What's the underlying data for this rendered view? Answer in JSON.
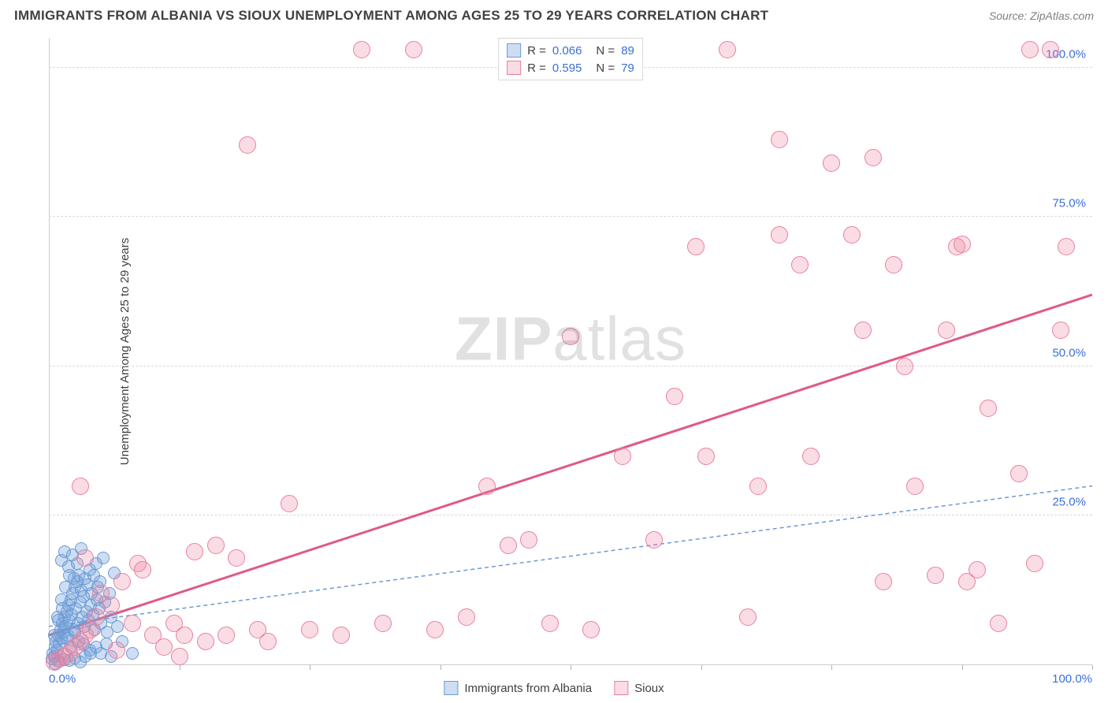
{
  "header": {
    "title": "IMMIGRANTS FROM ALBANIA VS SIOUX UNEMPLOYMENT AMONG AGES 25 TO 29 YEARS CORRELATION CHART",
    "source": "Source: ZipAtlas.com"
  },
  "watermark": {
    "z": "ZIP",
    "rest": "atlas"
  },
  "chart": {
    "type": "scatter",
    "y_axis_title": "Unemployment Among Ages 25 to 29 years",
    "background_color": "#ffffff",
    "grid_color": "#d8d8d8",
    "axis_color": "#cccccc",
    "tick_label_color": "#3a6fd8",
    "tick_fontsize": 15,
    "axis_title_fontsize": 15,
    "xlim": [
      0,
      100
    ],
    "ylim": [
      0,
      105
    ],
    "x_ticks": [
      0,
      12.5,
      25,
      37.5,
      50,
      62.5,
      75,
      87.5,
      100
    ],
    "x_tick_labels": {
      "0": "0.0%",
      "100": "100.0%"
    },
    "y_ticks": [
      25,
      50,
      75,
      100
    ],
    "y_tick_labels": {
      "25": "25.0%",
      "50": "50.0%",
      "75": "75.0%",
      "100": "100.0%"
    },
    "series": [
      {
        "name": "Immigrants from Albania",
        "label": "Immigrants from Albania",
        "color_fill": "rgba(116,161,219,0.35)",
        "color_stroke": "#6a9ad6",
        "marker_radius": 8,
        "R": "0.066",
        "N": "89",
        "trend": {
          "x1": 0,
          "y1": 6.5,
          "x2": 100,
          "y2": 30,
          "stroke": "#6a9ad6",
          "width": 1.5,
          "dash": "5,4"
        },
        "points": [
          [
            0.3,
            1.0
          ],
          [
            0.4,
            2.0
          ],
          [
            0.5,
            1.5
          ],
          [
            0.6,
            3.0
          ],
          [
            0.7,
            4.0
          ],
          [
            0.8,
            2.5
          ],
          [
            0.9,
            5.0
          ],
          [
            1.0,
            3.5
          ],
          [
            1.1,
            6.0
          ],
          [
            1.2,
            4.5
          ],
          [
            1.3,
            7.0
          ],
          [
            1.4,
            5.5
          ],
          [
            1.5,
            8.0
          ],
          [
            1.6,
            6.5
          ],
          [
            1.7,
            9.0
          ],
          [
            1.8,
            5.0
          ],
          [
            1.9,
            10.0
          ],
          [
            2.0,
            7.5
          ],
          [
            2.1,
            11.0
          ],
          [
            2.2,
            8.5
          ],
          [
            2.3,
            12.0
          ],
          [
            2.4,
            6.0
          ],
          [
            2.5,
            13.0
          ],
          [
            2.6,
            9.5
          ],
          [
            2.7,
            14.0
          ],
          [
            2.8,
            7.0
          ],
          [
            2.9,
            15.0
          ],
          [
            3.0,
            10.5
          ],
          [
            3.1,
            12.5
          ],
          [
            3.2,
            8.0
          ],
          [
            3.3,
            11.5
          ],
          [
            3.4,
            6.5
          ],
          [
            3.5,
            14.5
          ],
          [
            3.6,
            9.0
          ],
          [
            3.7,
            13.5
          ],
          [
            3.8,
            7.5
          ],
          [
            3.9,
            16.0
          ],
          [
            4.0,
            10.0
          ],
          [
            4.1,
            12.0
          ],
          [
            4.2,
            8.5
          ],
          [
            4.3,
            15.0
          ],
          [
            4.4,
            6.0
          ],
          [
            4.5,
            17.0
          ],
          [
            4.6,
            11.0
          ],
          [
            4.7,
            13.0
          ],
          [
            4.8,
            9.5
          ],
          [
            4.9,
            14.0
          ],
          [
            5.0,
            7.0
          ],
          [
            5.2,
            18.0
          ],
          [
            5.4,
            10.5
          ],
          [
            5.6,
            5.5
          ],
          [
            5.8,
            12.0
          ],
          [
            6.0,
            8.0
          ],
          [
            6.3,
            15.5
          ],
          [
            6.6,
            6.5
          ],
          [
            7.0,
            4.0
          ],
          [
            1.2,
            17.5
          ],
          [
            1.5,
            19.0
          ],
          [
            1.9,
            16.5
          ],
          [
            2.3,
            18.5
          ],
          [
            2.7,
            17.0
          ],
          [
            3.1,
            19.5
          ],
          [
            3.5,
            1.5
          ],
          [
            3.9,
            2.5
          ],
          [
            2.0,
            0.8
          ],
          [
            2.5,
            1.2
          ],
          [
            3.0,
            0.5
          ],
          [
            0.6,
            0.3
          ],
          [
            1.0,
            0.6
          ],
          [
            1.5,
            0.9
          ],
          [
            4.0,
            2.0
          ],
          [
            4.5,
            3.0
          ],
          [
            5.0,
            2.0
          ],
          [
            5.5,
            3.5
          ],
          [
            6.0,
            1.5
          ],
          [
            0.8,
            8.0
          ],
          [
            1.2,
            11.0
          ],
          [
            1.6,
            13.0
          ],
          [
            2.0,
            15.0
          ],
          [
            2.4,
            14.5
          ],
          [
            0.5,
            5.0
          ],
          [
            0.9,
            7.5
          ],
          [
            1.3,
            9.5
          ],
          [
            1.7,
            4.5
          ],
          [
            2.1,
            3.0
          ],
          [
            2.5,
            5.5
          ],
          [
            2.9,
            4.0
          ],
          [
            3.3,
            3.5
          ],
          [
            8.0,
            2.0
          ]
        ]
      },
      {
        "name": "Sioux",
        "label": "Sioux",
        "color_fill": "rgba(236,128,158,0.28)",
        "color_stroke": "#e8809f",
        "marker_radius": 11,
        "R": "0.595",
        "N": "79",
        "trend": {
          "x1": 0,
          "y1": 5,
          "x2": 100,
          "y2": 62,
          "stroke": "#e05a84",
          "width": 3,
          "dash": ""
        },
        "points": [
          [
            0.5,
            0.5
          ],
          [
            1.0,
            1.0
          ],
          [
            1.5,
            1.5
          ],
          [
            2.0,
            2.0
          ],
          [
            2.5,
            3.0
          ],
          [
            3.0,
            4.0
          ],
          [
            3.5,
            5.0
          ],
          [
            4.0,
            6.0
          ],
          [
            3.0,
            30.0
          ],
          [
            3.5,
            18.0
          ],
          [
            4.5,
            8.0
          ],
          [
            5.0,
            12.0
          ],
          [
            6.0,
            10.0
          ],
          [
            7.0,
            14.0
          ],
          [
            8.0,
            7.0
          ],
          [
            8.5,
            17.0
          ],
          [
            9.0,
            16.0
          ],
          [
            10.0,
            5.0
          ],
          [
            11.0,
            3.0
          ],
          [
            12.0,
            7.0
          ],
          [
            13.0,
            5.0
          ],
          [
            14.0,
            19.0
          ],
          [
            15.0,
            4.0
          ],
          [
            16.0,
            20.0
          ],
          [
            17.0,
            5.0
          ],
          [
            18.0,
            18.0
          ],
          [
            19.0,
            87.0
          ],
          [
            20.0,
            6.0
          ],
          [
            21.0,
            4.0
          ],
          [
            23.0,
            27.0
          ],
          [
            25.0,
            6.0
          ],
          [
            28.0,
            5.0
          ],
          [
            30.0,
            103.0
          ],
          [
            32.0,
            7.0
          ],
          [
            35.0,
            103.0
          ],
          [
            37.0,
            6.0
          ],
          [
            40.0,
            8.0
          ],
          [
            42.0,
            30.0
          ],
          [
            44.0,
            20.0
          ],
          [
            46.0,
            21.0
          ],
          [
            48.0,
            7.0
          ],
          [
            50.0,
            55.0
          ],
          [
            52.0,
            6.0
          ],
          [
            55.0,
            35.0
          ],
          [
            58.0,
            21.0
          ],
          [
            60.0,
            45.0
          ],
          [
            62.0,
            70.0
          ],
          [
            63.0,
            35.0
          ],
          [
            65.0,
            103.0
          ],
          [
            67.0,
            8.0
          ],
          [
            68.0,
            30.0
          ],
          [
            70.0,
            88.0
          ],
          [
            70.0,
            72.0
          ],
          [
            72.0,
            67.0
          ],
          [
            73.0,
            35.0
          ],
          [
            75.0,
            84.0
          ],
          [
            77.0,
            72.0
          ],
          [
            78.0,
            56.0
          ],
          [
            80.0,
            14.0
          ],
          [
            81.0,
            67.0
          ],
          [
            82.0,
            50.0
          ],
          [
            83.0,
            30.0
          ],
          [
            85.0,
            15.0
          ],
          [
            86.0,
            56.0
          ],
          [
            87.0,
            70.0
          ],
          [
            87.5,
            70.5
          ],
          [
            88.0,
            14.0
          ],
          [
            90.0,
            43.0
          ],
          [
            91.0,
            7.0
          ],
          [
            93.0,
            32.0
          ],
          [
            94.0,
            103.0
          ],
          [
            96.0,
            103.0
          ],
          [
            97.0,
            56.0
          ],
          [
            97.5,
            70.0
          ],
          [
            94.5,
            17.0
          ],
          [
            89.0,
            16.0
          ],
          [
            79.0,
            85.0
          ],
          [
            12.5,
            1.5
          ],
          [
            6.5,
            2.5
          ]
        ]
      }
    ],
    "bottom_legend": [
      {
        "label": "Immigrants from Albania",
        "fill": "rgba(116,161,219,0.35)",
        "stroke": "#6a9ad6"
      },
      {
        "label": "Sioux",
        "fill": "rgba(236,128,158,0.28)",
        "stroke": "#e8809f"
      }
    ]
  }
}
